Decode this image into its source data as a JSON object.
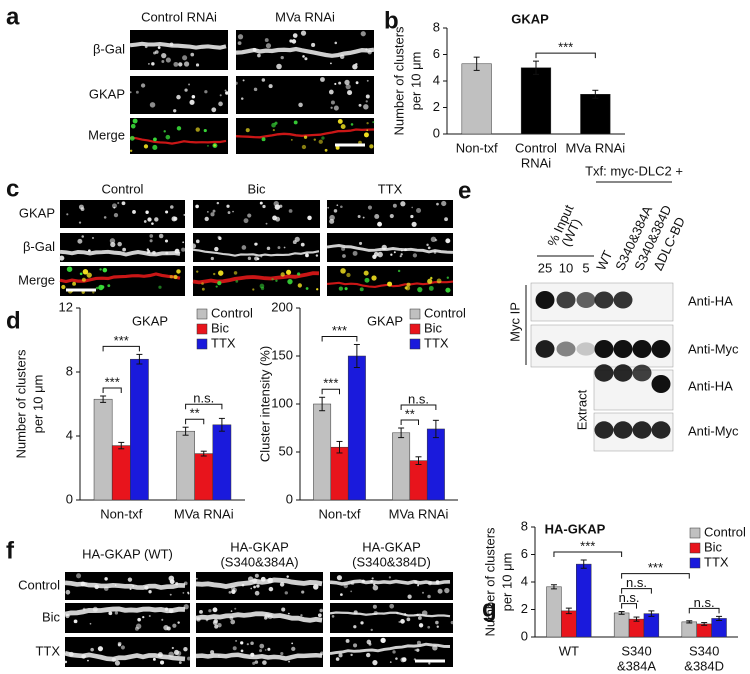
{
  "panel_labels": [
    "a",
    "b",
    "c",
    "d",
    "e",
    "f",
    "g"
  ],
  "panel_a": {
    "columns": [
      "Control RNAi",
      "MVa RNAi"
    ],
    "rows": [
      "β-Gal",
      "GKAP",
      "Merge"
    ],
    "row_colors": [
      "#e0151c",
      "#22b022",
      "#111111"
    ]
  },
  "panel_c": {
    "columns": [
      "Control",
      "Bic",
      "TTX"
    ],
    "rows": [
      "GKAP",
      "β-Gal",
      "Merge"
    ],
    "row_colors": [
      "#22b022",
      "#e0151c",
      "#111111"
    ]
  },
  "panel_e": {
    "treatment": "Txf: myc-DLC2 +",
    "input_header": [
      "% Input",
      "(WT)"
    ],
    "lanes": [
      "25",
      "10",
      "5",
      "WT",
      "S340&384A",
      "S340&384D",
      "ΔDLC-BD"
    ],
    "blot_labels": [
      "Anti-HA",
      "Anti-Myc",
      "Anti-HA",
      "Anti-Myc"
    ],
    "fractions": [
      "Myc IP",
      "Extract"
    ]
  },
  "panel_f": {
    "columns": [
      [
        "HA-GKAP (WT)"
      ],
      [
        "HA-GKAP",
        "(S340&384A)"
      ],
      [
        "HA-GKAP",
        "(S340&384D)"
      ]
    ],
    "rows": [
      "Control",
      "Bic",
      "TTX"
    ]
  },
  "chart_data": [
    {
      "type": "bar",
      "title": "GKAP",
      "ylabel": [
        "Number of clusters",
        "per 10 μm"
      ],
      "categories": [
        [
          "Non-txf"
        ],
        [
          "Control",
          "RNAi"
        ],
        [
          "MVa RNAi"
        ]
      ],
      "values": [
        5.3,
        5.0,
        3.0
      ],
      "errors": [
        0.5,
        0.5,
        0.3
      ],
      "colors": [
        "#c0c0c0",
        "#000000",
        "#000000"
      ],
      "ylim": [
        0,
        8
      ],
      "yticks": [
        0,
        2,
        4,
        6,
        8
      ],
      "brackets": [
        {
          "label": "***",
          "from": [
            1,
            0
          ],
          "to": [
            2,
            0
          ]
        }
      ]
    },
    {
      "type": "grouped_bar",
      "title": "GKAP",
      "ylabel": [
        "Number of clusters",
        "per 10 μm"
      ],
      "categories": [
        [
          "Non-txf"
        ],
        [
          "MVa RNAi"
        ]
      ],
      "series": [
        {
          "name": "Control",
          "color": "#c0c0c0",
          "values": [
            6.3,
            4.3
          ],
          "errors": [
            0.2,
            0.25
          ]
        },
        {
          "name": "Bic",
          "color": "#e8141c",
          "values": [
            3.4,
            2.9
          ],
          "errors": [
            0.2,
            0.15
          ]
        },
        {
          "name": "TTX",
          "color": "#1a1adc",
          "values": [
            8.8,
            4.7
          ],
          "errors": [
            0.3,
            0.4
          ]
        }
      ],
      "ylim": [
        0,
        12
      ],
      "yticks": [
        0,
        4,
        8,
        12
      ],
      "legend": "upper right",
      "brackets": [
        {
          "label": "***",
          "from": [
            0,
            0
          ],
          "to": [
            0,
            1
          ]
        },
        {
          "label": "***",
          "from": [
            0,
            0
          ],
          "to": [
            0,
            2
          ]
        },
        {
          "label": "**",
          "from": [
            1,
            0
          ],
          "to": [
            1,
            1
          ]
        },
        {
          "label": "n.s.",
          "from": [
            1,
            0
          ],
          "to": [
            1,
            2
          ]
        }
      ]
    },
    {
      "type": "grouped_bar",
      "title": "GKAP",
      "ylabel": [
        "Cluster intensity (%)"
      ],
      "categories": [
        [
          "Non-txf"
        ],
        [
          "MVa RNAi"
        ]
      ],
      "series": [
        {
          "name": "Control",
          "color": "#c0c0c0",
          "values": [
            100,
            70
          ],
          "errors": [
            7,
            5
          ]
        },
        {
          "name": "Bic",
          "color": "#e8141c",
          "values": [
            55,
            41
          ],
          "errors": [
            6,
            4
          ]
        },
        {
          "name": "TTX",
          "color": "#1a1adc",
          "values": [
            150,
            74
          ],
          "errors": [
            12,
            9
          ]
        }
      ],
      "ylim": [
        0,
        200
      ],
      "yticks": [
        0,
        50,
        100,
        150,
        200
      ],
      "legend": "upper right",
      "brackets": [
        {
          "label": "***",
          "from": [
            0,
            0
          ],
          "to": [
            0,
            1
          ]
        },
        {
          "label": "***",
          "from": [
            0,
            0
          ],
          "to": [
            0,
            2
          ]
        },
        {
          "label": "**",
          "from": [
            1,
            0
          ],
          "to": [
            1,
            1
          ]
        },
        {
          "label": "n.s.",
          "from": [
            1,
            0
          ],
          "to": [
            1,
            2
          ]
        }
      ]
    },
    {
      "type": "grouped_bar",
      "title": "HA-GKAP",
      "ylabel": [
        "Number of clusters",
        "per 10 μm"
      ],
      "categories": [
        [
          "WT"
        ],
        [
          "S340",
          "&384A"
        ],
        [
          "S340",
          "&384D"
        ]
      ],
      "series": [
        {
          "name": "Control",
          "color": "#c0c0c0",
          "values": [
            3.65,
            1.75,
            1.1
          ],
          "errors": [
            0.15,
            0.1,
            0.08
          ]
        },
        {
          "name": "Bic",
          "color": "#e8141c",
          "values": [
            1.9,
            1.3,
            0.95
          ],
          "errors": [
            0.2,
            0.15,
            0.1
          ]
        },
        {
          "name": "TTX",
          "color": "#1a1adc",
          "values": [
            5.3,
            1.7,
            1.35
          ],
          "errors": [
            0.3,
            0.2,
            0.15
          ]
        }
      ],
      "ylim": [
        0,
        8
      ],
      "yticks": [
        0,
        2,
        4,
        6,
        8
      ],
      "legend": "upper right",
      "brackets": [
        {
          "label": "n.s.",
          "from": [
            1,
            0
          ],
          "to": [
            1,
            1
          ]
        },
        {
          "label": "n.s.",
          "from": [
            1,
            0
          ],
          "to": [
            1,
            2
          ]
        },
        {
          "label": "n.s.",
          "from": [
            2,
            0
          ],
          "to": [
            2,
            2
          ]
        },
        {
          "label": "***",
          "from": [
            1,
            0
          ],
          "to": [
            2,
            0
          ]
        },
        {
          "label": "***",
          "from": [
            0,
            0
          ],
          "to": [
            1,
            0
          ]
        }
      ]
    }
  ]
}
